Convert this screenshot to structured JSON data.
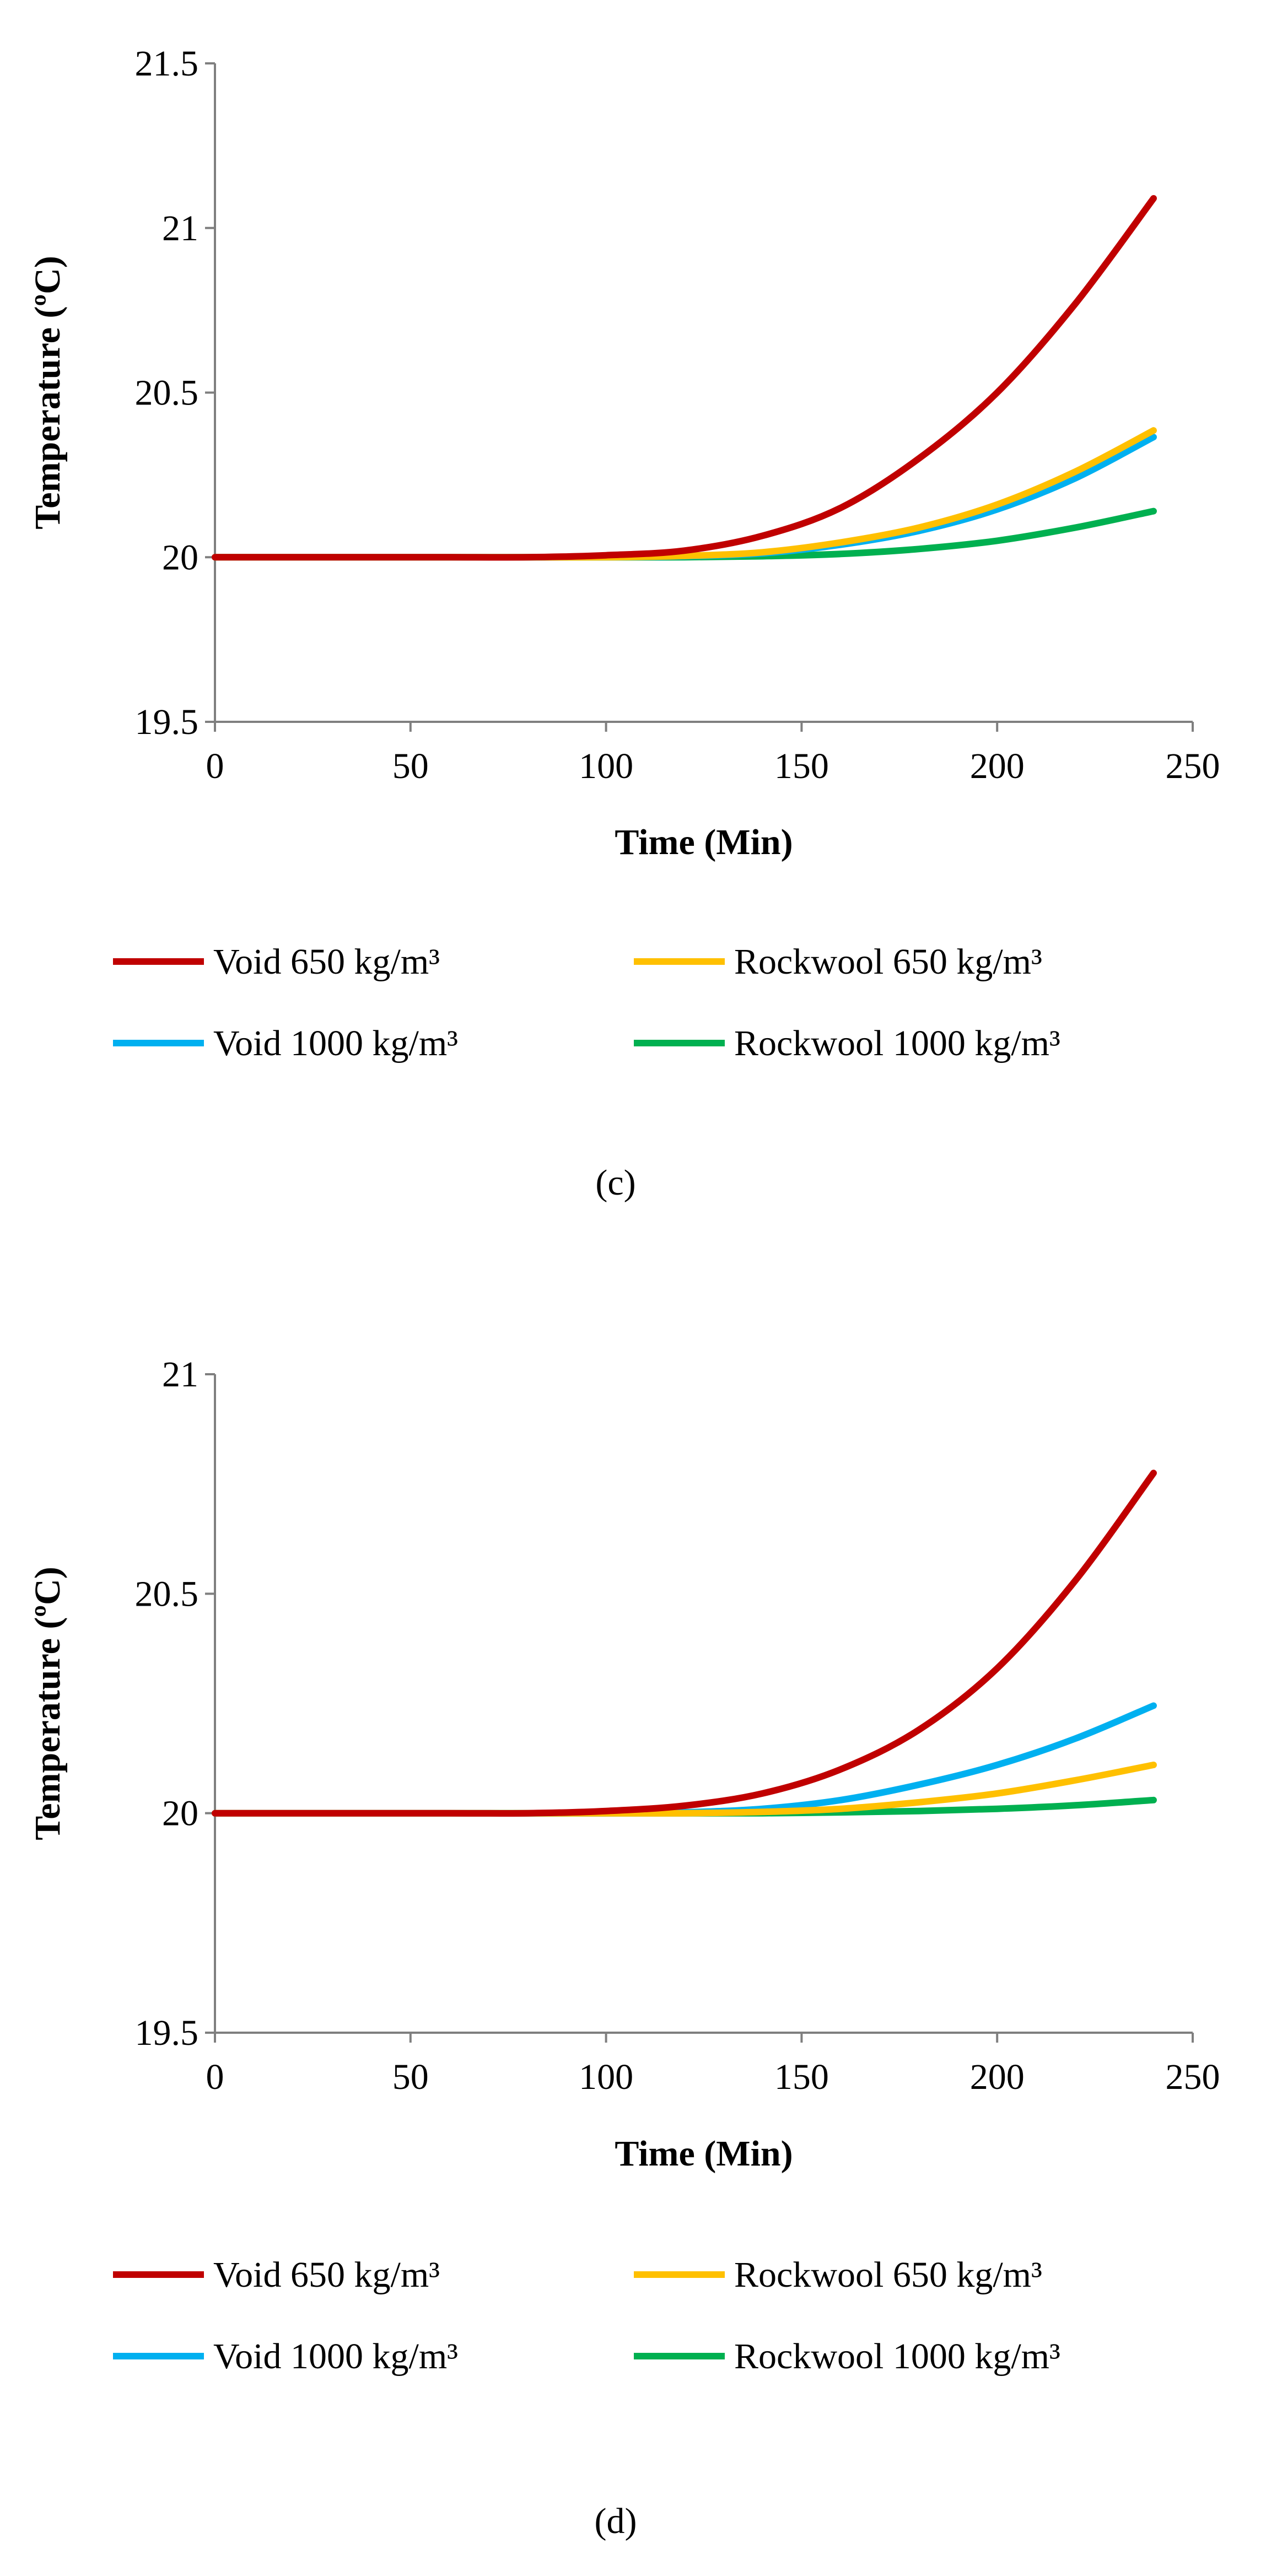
{
  "figure": {
    "panels": [
      "(c)",
      "(d)"
    ]
  },
  "colors": {
    "void_650": "#C00000",
    "rockwool_650": "#FFC000",
    "void_1000": "#00B0F0",
    "rockwool_1000": "#00B050",
    "axis": "#7F7F7F"
  },
  "chart_data": [
    {
      "type": "line",
      "panel_label": "(c)",
      "title": "",
      "xlabel": "Time (Min)",
      "ylabel": "Temperature (ºC)",
      "xlim": [
        0,
        250
      ],
      "ylim": [
        19.5,
        21.5
      ],
      "xticks": [
        0,
        50,
        100,
        150,
        200,
        250
      ],
      "yticks": [
        19.5,
        20,
        20.5,
        21,
        21.5
      ],
      "grid": false,
      "legend_position": "bottom",
      "x": [
        0,
        20,
        40,
        60,
        80,
        100,
        120,
        140,
        160,
        180,
        200,
        220,
        240
      ],
      "series": [
        {
          "name": "Void 650 kg/m³",
          "color_key": "void_650",
          "values": [
            20.0,
            20.0,
            20.0,
            20.0,
            20.0,
            20.006,
            20.02,
            20.065,
            20.15,
            20.3,
            20.5,
            20.77,
            21.09
          ]
        },
        {
          "name": "Rockwool 650 kg/m³",
          "color_key": "rockwool_650",
          "values": [
            20.0,
            20.0,
            20.0,
            20.0,
            20.0,
            20.0,
            20.004,
            20.015,
            20.045,
            20.09,
            20.16,
            20.26,
            20.385
          ]
        },
        {
          "name": "Void 1000 kg/m³",
          "color_key": "void_1000",
          "values": [
            20.0,
            20.0,
            20.0,
            20.0,
            20.0,
            20.0,
            20.003,
            20.012,
            20.038,
            20.08,
            20.145,
            20.24,
            20.365
          ]
        },
        {
          "name": "Rockwool 1000 kg/m³",
          "color_key": "rockwool_1000",
          "values": [
            20.0,
            20.0,
            20.0,
            20.0,
            20.0,
            20.0,
            20.0,
            20.003,
            20.01,
            20.025,
            20.05,
            20.09,
            20.14
          ]
        }
      ]
    },
    {
      "type": "line",
      "panel_label": "(d)",
      "title": "",
      "xlabel": "Time (Min)",
      "ylabel": "Temperature (ºC)",
      "xlim": [
        0,
        250
      ],
      "ylim": [
        19.5,
        21
      ],
      "xticks": [
        0,
        50,
        100,
        150,
        200,
        250
      ],
      "yticks": [
        19.5,
        20,
        20.5,
        21
      ],
      "grid": false,
      "legend_position": "bottom",
      "x": [
        0,
        20,
        40,
        60,
        80,
        100,
        120,
        140,
        160,
        180,
        200,
        220,
        240
      ],
      "series": [
        {
          "name": "Void 650 kg/m³",
          "color_key": "void_650",
          "values": [
            20.0,
            20.0,
            20.0,
            20.0,
            20.0,
            20.005,
            20.017,
            20.045,
            20.1,
            20.19,
            20.33,
            20.53,
            20.775
          ]
        },
        {
          "name": "Rockwool 650 kg/m³",
          "color_key": "rockwool_650",
          "values": [
            20.0,
            20.0,
            20.0,
            20.0,
            20.0,
            20.0,
            20.0,
            20.003,
            20.01,
            20.025,
            20.045,
            20.075,
            20.11
          ]
        },
        {
          "name": "Void 1000 kg/m³",
          "color_key": "void_1000",
          "values": [
            20.0,
            20.0,
            20.0,
            20.0,
            20.0,
            20.0,
            20.002,
            20.01,
            20.03,
            20.065,
            20.11,
            20.17,
            20.245
          ]
        },
        {
          "name": "Rockwool 1000 kg/m³",
          "color_key": "rockwool_1000",
          "values": [
            20.0,
            20.0,
            20.0,
            20.0,
            20.0,
            20.0,
            20.0,
            20.0,
            20.002,
            20.005,
            20.01,
            20.018,
            20.03
          ]
        }
      ]
    }
  ]
}
